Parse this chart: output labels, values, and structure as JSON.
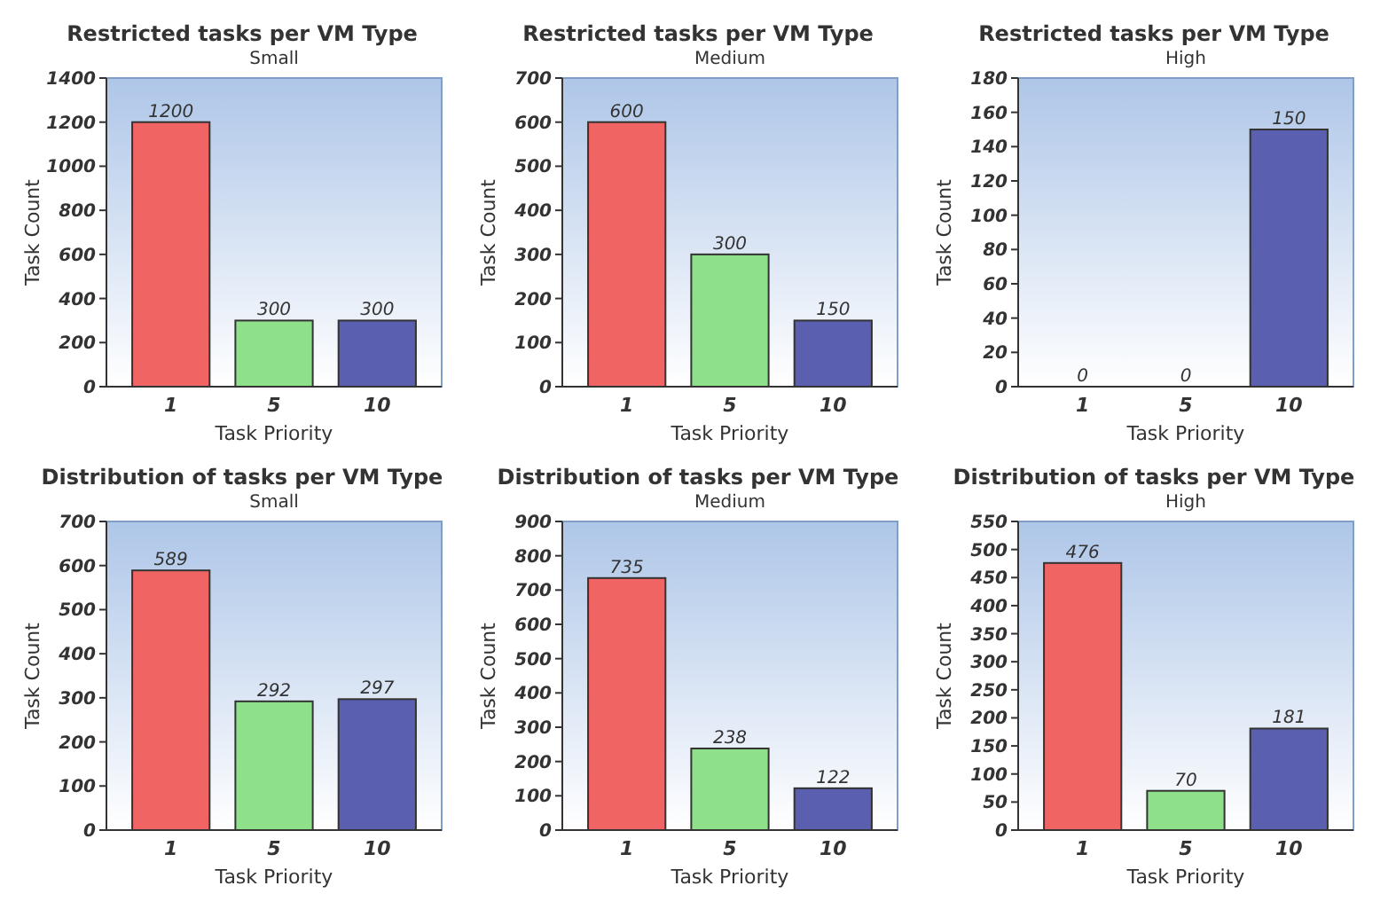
{
  "chart_data": [
    {
      "type": "bar",
      "title": "Restricted tasks per VM Type",
      "subtitle": "Small",
      "xlabel": "Task Priority",
      "ylabel": "Task Count",
      "categories": [
        "1",
        "5",
        "10"
      ],
      "values": [
        1200,
        300,
        300
      ],
      "colors": [
        "#f06464",
        "#8ee08a",
        "#5a5fb0"
      ],
      "ylim": [
        0,
        1400
      ],
      "yticks": [
        0,
        200,
        400,
        600,
        800,
        1000,
        1200,
        1400
      ],
      "data_labels": true,
      "grid": false
    },
    {
      "type": "bar",
      "title": "Restricted tasks per VM Type",
      "subtitle": "Medium",
      "xlabel": "Task Priority",
      "ylabel": "Task Count",
      "categories": [
        "1",
        "5",
        "10"
      ],
      "values": [
        600,
        300,
        150
      ],
      "colors": [
        "#f06464",
        "#8ee08a",
        "#5a5fb0"
      ],
      "ylim": [
        0,
        700
      ],
      "yticks": [
        0,
        100,
        200,
        300,
        400,
        500,
        600,
        700
      ],
      "data_labels": true,
      "grid": false
    },
    {
      "type": "bar",
      "title": "Restricted tasks per VM Type",
      "subtitle": "High",
      "xlabel": "Task Priority",
      "ylabel": "Task Count",
      "categories": [
        "1",
        "5",
        "10"
      ],
      "values": [
        0,
        0,
        150
      ],
      "colors": [
        "#f06464",
        "#8ee08a",
        "#5a5fb0"
      ],
      "ylim": [
        0,
        180
      ],
      "yticks": [
        0,
        20,
        40,
        60,
        80,
        100,
        120,
        140,
        160,
        180
      ],
      "data_labels": true,
      "grid": false
    },
    {
      "type": "bar",
      "title": "Distribution of tasks per VM Type",
      "subtitle": "Small",
      "xlabel": "Task Priority",
      "ylabel": "Task Count",
      "categories": [
        "1",
        "5",
        "10"
      ],
      "values": [
        589,
        292,
        297
      ],
      "colors": [
        "#f06464",
        "#8ee08a",
        "#5a5fb0"
      ],
      "ylim": [
        0,
        700
      ],
      "yticks": [
        0,
        100,
        200,
        300,
        400,
        500,
        600,
        700
      ],
      "data_labels": true,
      "grid": false
    },
    {
      "type": "bar",
      "title": "Distribution of tasks per VM Type",
      "subtitle": "Medium",
      "xlabel": "Task Priority",
      "ylabel": "Task Count",
      "categories": [
        "1",
        "5",
        "10"
      ],
      "values": [
        735,
        238,
        122
      ],
      "colors": [
        "#f06464",
        "#8ee08a",
        "#5a5fb0"
      ],
      "ylim": [
        0,
        900
      ],
      "yticks": [
        0,
        100,
        200,
        300,
        400,
        500,
        600,
        700,
        800,
        900
      ],
      "data_labels": true,
      "grid": false
    },
    {
      "type": "bar",
      "title": "Distribution of tasks per VM Type",
      "subtitle": "High",
      "xlabel": "Task Priority",
      "ylabel": "Task Count",
      "categories": [
        "1",
        "5",
        "10"
      ],
      "values": [
        476,
        70,
        181
      ],
      "colors": [
        "#f06464",
        "#8ee08a",
        "#5a5fb0"
      ],
      "ylim": [
        0,
        550
      ],
      "yticks": [
        0,
        50,
        100,
        150,
        200,
        250,
        300,
        350,
        400,
        450,
        500,
        550
      ],
      "data_labels": true,
      "grid": false
    }
  ]
}
